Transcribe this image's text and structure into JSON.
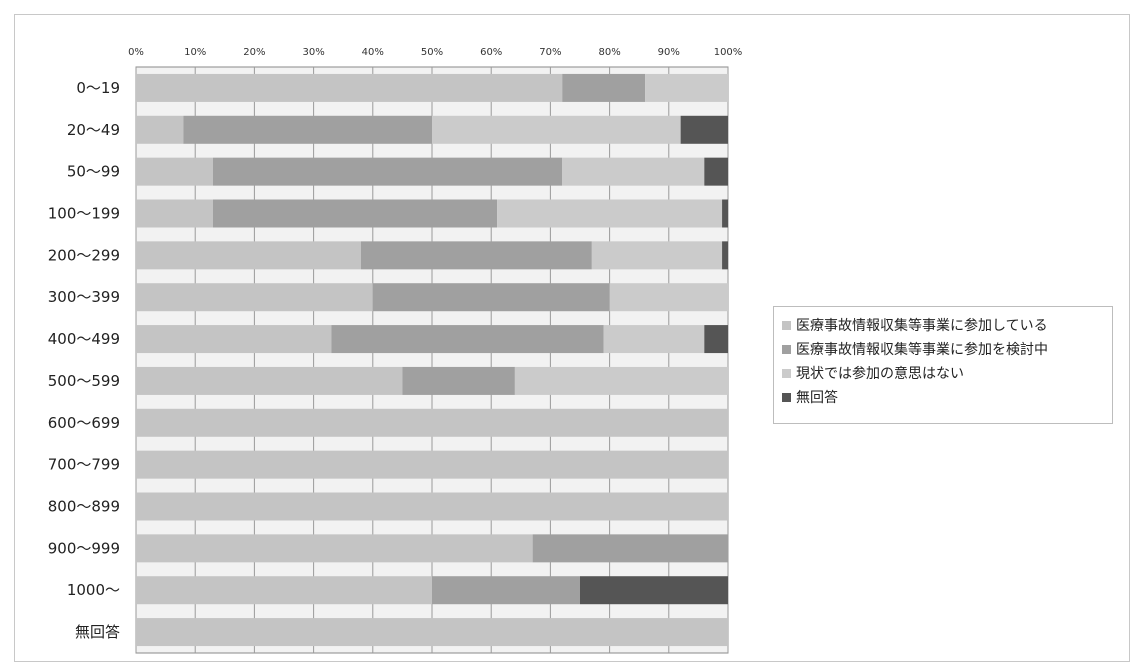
{
  "chart_data": {
    "type": "bar",
    "orientation": "horizontal",
    "stacked": "percent",
    "title": "",
    "xlabel": "",
    "ylabel": "",
    "xlim": [
      0,
      100
    ],
    "x_ticks": [
      "0%",
      "10%",
      "20%",
      "30%",
      "40%",
      "50%",
      "60%",
      "70%",
      "80%",
      "90%",
      "100%"
    ],
    "x_axis_position": "top",
    "grid": "vertical",
    "legend_position": "right",
    "categories": [
      "0～19",
      "20～49",
      "50～99",
      "100～199",
      "200～299",
      "300～399",
      "400～499",
      "500～599",
      "600～699",
      "700～799",
      "800～899",
      "900～999",
      "1000～",
      "無回答"
    ],
    "series": [
      {
        "name": "医療事故情報収集等事業に参加している",
        "color": "#c4c4c4",
        "values": [
          72,
          8,
          13,
          13,
          38,
          40,
          33,
          45,
          100,
          100,
          100,
          67,
          50,
          100
        ]
      },
      {
        "name": "医療事故情報収集等事業に参加を検討中",
        "color": "#a0a0a0",
        "values": [
          14,
          42,
          59,
          48,
          39,
          40,
          46,
          19,
          0,
          0,
          0,
          33,
          25,
          0
        ]
      },
      {
        "name": "現状では参加の意思はない",
        "color": "#cbcbcb",
        "values": [
          14,
          42,
          24,
          38,
          22,
          20,
          17,
          36,
          0,
          0,
          0,
          0,
          0,
          0
        ]
      },
      {
        "name": "無回答",
        "color": "#555555",
        "values": [
          0,
          8,
          4,
          1,
          1,
          0,
          4,
          0,
          0,
          0,
          0,
          0,
          25,
          0
        ]
      }
    ]
  }
}
